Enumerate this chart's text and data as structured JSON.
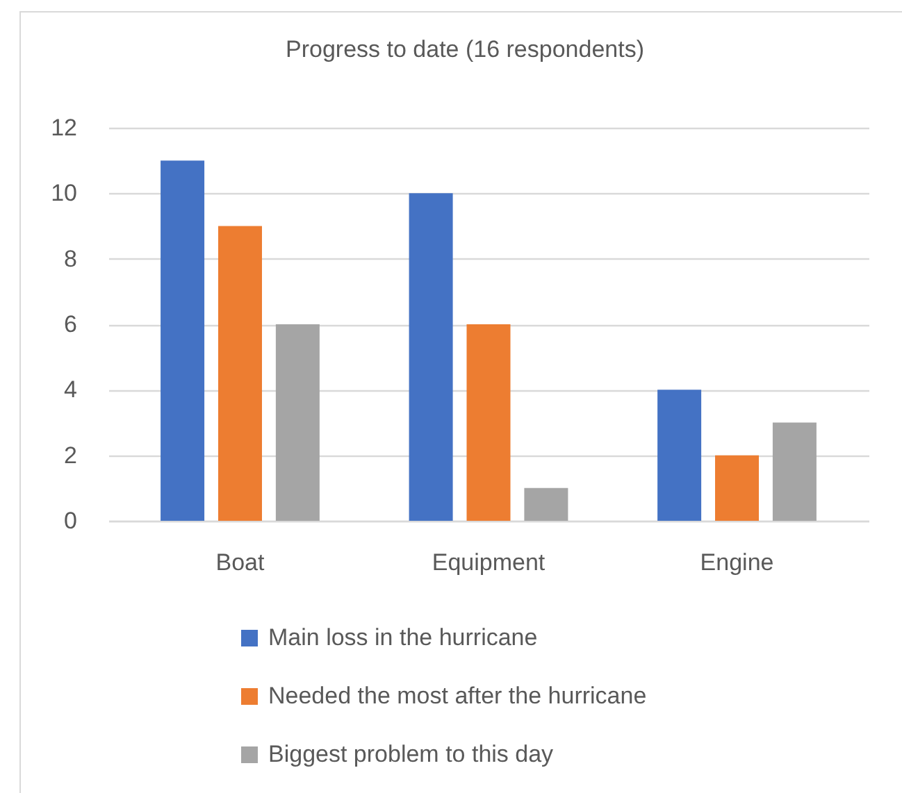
{
  "chart_data": {
    "type": "bar",
    "title": "Progress to date (16 respondents)",
    "categories": [
      "Boat",
      "Equipment",
      "Engine"
    ],
    "series": [
      {
        "name": "Main loss in the hurricane",
        "color": "#4472c4",
        "values": [
          11,
          10,
          4
        ]
      },
      {
        "name": "Needed the most after the hurricane",
        "color": "#ed7d31",
        "values": [
          9,
          6,
          2
        ]
      },
      {
        "name": "Biggest problem to this day",
        "color": "#a5a5a5",
        "values": [
          6,
          1,
          3
        ]
      }
    ],
    "ylim": [
      0,
      12
    ],
    "yticks": [
      0,
      2,
      4,
      6,
      8,
      10,
      12
    ],
    "grid": "y",
    "legend": "bottom"
  }
}
